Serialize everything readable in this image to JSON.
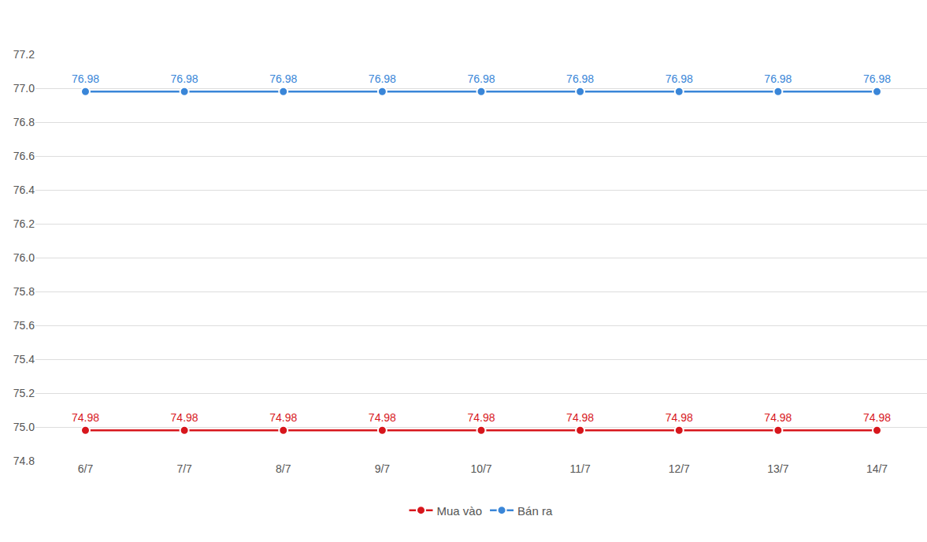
{
  "chart_data": {
    "type": "line",
    "categories": [
      "6/7",
      "7/7",
      "8/7",
      "9/7",
      "10/7",
      "11/7",
      "12/7",
      "13/7",
      "14/7"
    ],
    "series": [
      {
        "name": "Mua vào",
        "color": "#d7161c",
        "marker": "circle",
        "values": [
          74.98,
          74.98,
          74.98,
          74.98,
          74.98,
          74.98,
          74.98,
          74.98,
          74.98
        ]
      },
      {
        "name": "Bán ra",
        "color": "#3a86d8",
        "marker": "circle",
        "values": [
          76.98,
          76.98,
          76.98,
          76.98,
          76.98,
          76.98,
          76.98,
          76.98,
          76.98
        ]
      }
    ],
    "ylim": [
      74.8,
      77.2
    ],
    "yticks": [
      74.8,
      {
        "value": 75,
        "label": "75.0"
      },
      75.2,
      75.4,
      75.6,
      75.8,
      {
        "value": 76,
        "label": "76.0"
      },
      76.2,
      76.4,
      76.6,
      76.8,
      {
        "value": 77,
        "label": "77.0"
      },
      77.2
    ],
    "grid": true,
    "data_labels": true,
    "legend": "bottom"
  }
}
